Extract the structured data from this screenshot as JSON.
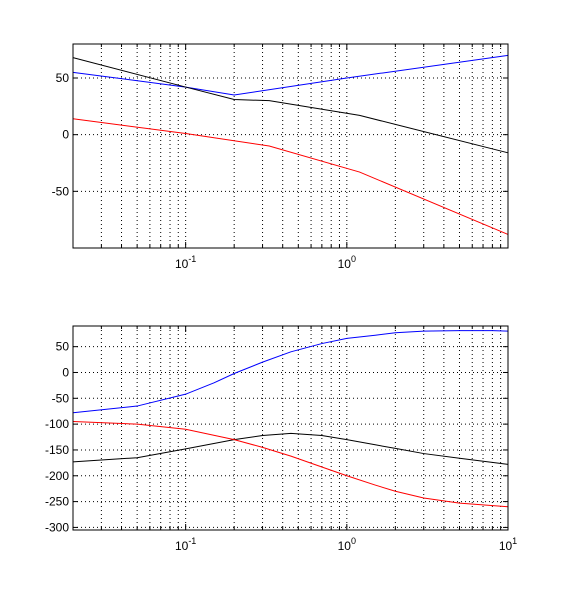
{
  "chart_data": [
    {
      "type": "line",
      "title": "",
      "xlabel": "",
      "ylabel": "",
      "x_scale": "log",
      "xlim": [
        0.02,
        10
      ],
      "ylim": [
        -100,
        80
      ],
      "grid": true,
      "y_ticks": [
        50,
        0,
        -50
      ],
      "y_tick_labels": [
        "50",
        "0",
        "-50"
      ],
      "x_ticks": [
        0.1,
        1
      ],
      "x_tick_labels": [
        {
          "base": "10",
          "exp": "-1"
        },
        {
          "base": "10",
          "exp": "0"
        }
      ],
      "series": [
        {
          "color": "#0000ff",
          "x": [
            0.02,
            0.1,
            0.2,
            1,
            10
          ],
          "y": [
            55,
            42,
            35,
            50,
            70
          ]
        },
        {
          "color": "#000000",
          "x": [
            0.02,
            0.1,
            0.2,
            0.33,
            1.2,
            10
          ],
          "y": [
            68,
            42,
            31,
            30,
            17,
            -16
          ]
        },
        {
          "color": "#ff0000",
          "x": [
            0.02,
            0.1,
            0.33,
            1.2,
            10
          ],
          "y": [
            14,
            1,
            -10,
            -33,
            -88
          ]
        }
      ]
    },
    {
      "type": "line",
      "title": "",
      "xlabel": "",
      "ylabel": "",
      "x_scale": "log",
      "xlim": [
        0.02,
        10
      ],
      "ylim": [
        -305,
        90
      ],
      "grid": true,
      "y_ticks": [
        50,
        0,
        -50,
        -100,
        -150,
        -200,
        -250,
        -300
      ],
      "y_tick_labels": [
        "50",
        "0",
        "-50",
        "-100",
        "-150",
        "-200",
        "-250",
        "-300"
      ],
      "x_ticks": [
        0.1,
        1,
        10
      ],
      "x_tick_labels": [
        {
          "base": "10",
          "exp": "-1"
        },
        {
          "base": "10",
          "exp": "0"
        },
        {
          "base": "10",
          "exp": "1"
        }
      ],
      "series": [
        {
          "color": "#0000ff",
          "x": [
            0.02,
            0.05,
            0.1,
            0.15,
            0.2,
            0.3,
            0.45,
            0.7,
            1,
            1.5,
            2,
            3,
            5,
            8,
            10
          ],
          "y": [
            -78,
            -65,
            -42,
            -20,
            -2,
            20,
            40,
            56,
            66,
            72,
            77,
            80,
            81,
            81,
            80
          ]
        },
        {
          "color": "#000000",
          "x": [
            0.02,
            0.05,
            0.1,
            0.2,
            0.3,
            0.45,
            0.7,
            1,
            1.5,
            2,
            3,
            5,
            10
          ],
          "y": [
            -173,
            -165,
            -148,
            -130,
            -122,
            -118,
            -122,
            -130,
            -140,
            -147,
            -157,
            -166,
            -178
          ]
        },
        {
          "color": "#ff0000",
          "x": [
            0.02,
            0.05,
            0.1,
            0.2,
            0.3,
            0.45,
            0.7,
            1,
            1.5,
            2,
            3,
            5,
            10
          ],
          "y": [
            -95,
            -100,
            -110,
            -130,
            -145,
            -162,
            -183,
            -200,
            -218,
            -230,
            -243,
            -253,
            -260
          ]
        }
      ]
    }
  ]
}
